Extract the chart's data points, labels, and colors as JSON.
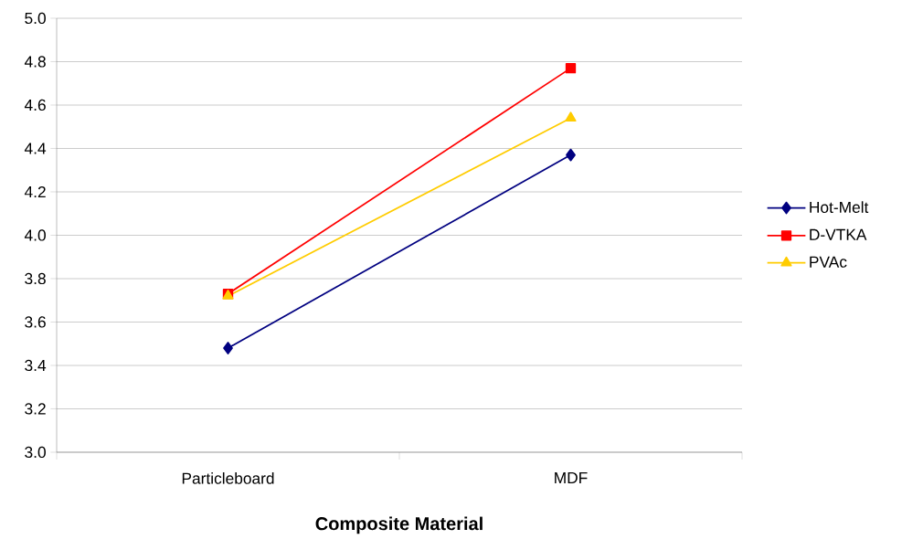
{
  "chart_data": {
    "type": "line",
    "xlabel": "Composite Material",
    "categories": [
      "Particleboard",
      "MDF"
    ],
    "series": [
      {
        "name": "Hot-Melt",
        "color": "#000080",
        "marker": "diamond",
        "values": [
          3.48,
          4.37
        ]
      },
      {
        "name": "D-VTKA",
        "color": "#ff0000",
        "marker": "square",
        "values": [
          3.73,
          4.77
        ]
      },
      {
        "name": "PVAc",
        "color": "#ffcc00",
        "marker": "triangle",
        "values": [
          3.72,
          4.54
        ]
      }
    ],
    "ylim": [
      3.0,
      5.0
    ],
    "yticks": [
      {
        "value": 3,
        "label": "3.0"
      },
      3.2,
      3.4,
      3.6,
      3.8,
      {
        "value": 4,
        "label": "4.0"
      },
      4.2,
      4.4,
      4.6,
      4.8,
      {
        "value": 5,
        "label": "5.0"
      }
    ],
    "grid": "y",
    "legend": "right",
    "line_style": "solid"
  }
}
